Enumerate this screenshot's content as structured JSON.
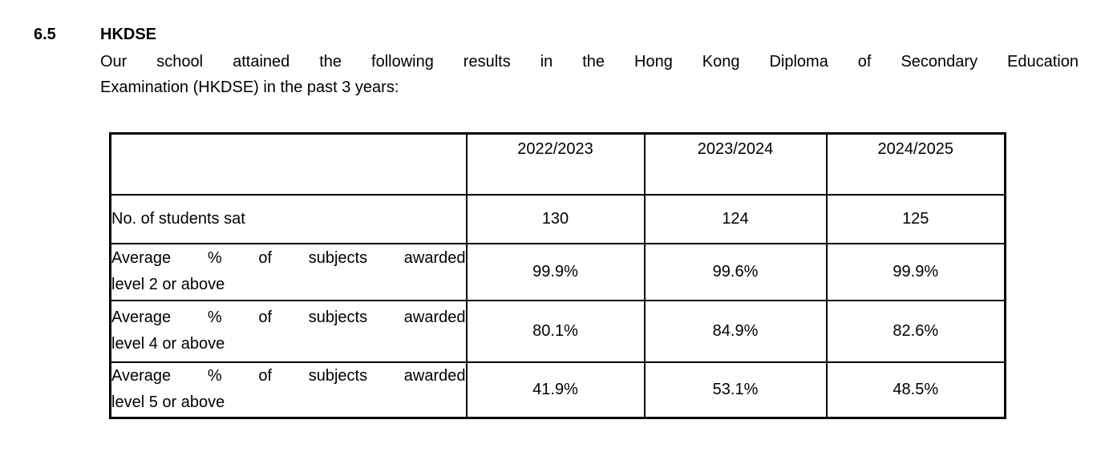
{
  "section": {
    "number": "6.5",
    "title": "HKDSE"
  },
  "paragraph": {
    "line1": "Our school attained the following results in the Hong Kong Diploma of Secondary Education",
    "line2": "Examination (HKDSE) in the past 3 years:"
  },
  "table": {
    "header": {
      "label_column": "",
      "years": [
        "2022/2023",
        "2023/2024",
        "2024/2025"
      ]
    },
    "rows": [
      {
        "label_lines": [
          "No. of students sat",
          ""
        ],
        "values": [
          "130",
          "124",
          "125"
        ]
      },
      {
        "label_lines": [
          "Average % of subjects awarded",
          "level 2 or above"
        ],
        "values": [
          "99.9%",
          "99.6%",
          "99.9%"
        ]
      },
      {
        "label_lines": [
          "Average % of subjects awarded",
          "level 4 or above"
        ],
        "values": [
          "80.1%",
          "84.9%",
          "82.6%"
        ]
      },
      {
        "label_lines": [
          "Average % of subjects awarded",
          "level 5 or above"
        ],
        "values": [
          "41.9%",
          "53.1%",
          "48.5%"
        ]
      }
    ]
  },
  "colors": {
    "text": "#000000",
    "border": "#000000",
    "background": "#ffffff"
  }
}
